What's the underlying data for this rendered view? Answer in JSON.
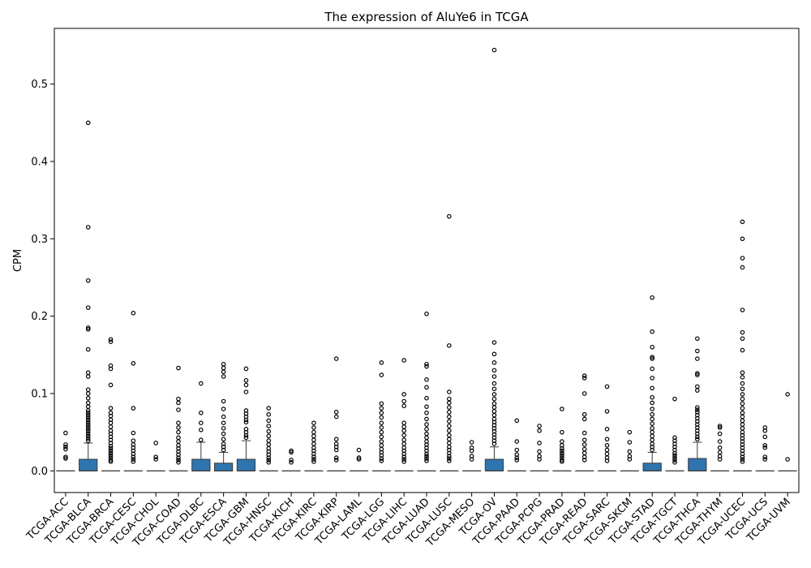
{
  "chart_data": {
    "type": "box",
    "title": "The expression of AluYe6 in TCGA",
    "xlabel": "",
    "ylabel": "CPM",
    "ylim": [
      -0.028,
      0.572
    ],
    "yticks": [
      0.0,
      0.1,
      0.2,
      0.3,
      0.4,
      0.5
    ],
    "ytick_labels": [
      "0.0",
      "0.1",
      "0.2",
      "0.3",
      "0.4",
      "0.5"
    ],
    "grid": false,
    "box_color": "#2e75b0",
    "categories": [
      "TCGA-ACC",
      "TCGA-BLCA",
      "TCGA-BRCA",
      "TCGA-CESC",
      "TCGA-CHOL",
      "TCGA-COAD",
      "TCGA-DLBC",
      "TCGA-ESCA",
      "TCGA-GBM",
      "TCGA-HNSC",
      "TCGA-KICH",
      "TCGA-KIRC",
      "TCGA-KIRP",
      "TCGA-LAML",
      "TCGA-LGG",
      "TCGA-LIHC",
      "TCGA-LUAD",
      "TCGA-LUSC",
      "TCGA-MESO",
      "TCGA-OV",
      "TCGA-PAAD",
      "TCGA-PCPG",
      "TCGA-PRAD",
      "TCGA-READ",
      "TCGA-SARC",
      "TCGA-SKCM",
      "TCGA-STAD",
      "TCGA-TGCT",
      "TCGA-THCA",
      "TCGA-THYM",
      "TCGA-UCEC",
      "TCGA-UCS",
      "TCGA-UVM"
    ],
    "boxes": [
      {
        "q1": 0,
        "median": 0,
        "q3": 0,
        "whisker_low": 0,
        "whisker_high": 0,
        "outliers": [
          0.049,
          0.034,
          0.031,
          0.028,
          0.018,
          0.016
        ]
      },
      {
        "q1": 0,
        "median": 0,
        "q3": 0.015,
        "whisker_low": 0,
        "whisker_high": 0.036,
        "outliers": [
          0.45,
          0.315,
          0.246,
          0.211,
          0.185,
          0.183,
          0.157,
          0.127,
          0.122,
          0.105,
          0.1,
          0.094,
          0.088,
          0.083,
          0.078,
          0.075,
          0.072,
          0.069,
          0.066,
          0.063,
          0.06,
          0.057,
          0.054,
          0.051,
          0.048,
          0.045,
          0.042,
          0.039
        ]
      },
      {
        "q1": 0,
        "median": 0,
        "q3": 0,
        "whisker_low": 0,
        "whisker_high": 0,
        "outliers": [
          0.17,
          0.167,
          0.136,
          0.132,
          0.111,
          0.081,
          0.075,
          0.071,
          0.066,
          0.062,
          0.057,
          0.052,
          0.048,
          0.044,
          0.04,
          0.036,
          0.032,
          0.029,
          0.026,
          0.023,
          0.02,
          0.017,
          0.014,
          0.012
        ]
      },
      {
        "q1": 0,
        "median": 0,
        "q3": 0,
        "whisker_low": 0,
        "whisker_high": 0,
        "outliers": [
          0.204,
          0.139,
          0.081,
          0.049,
          0.039,
          0.034,
          0.03,
          0.026,
          0.022,
          0.018,
          0.015,
          0.012
        ]
      },
      {
        "q1": 0,
        "median": 0,
        "q3": 0,
        "whisker_low": 0,
        "whisker_high": 0,
        "outliers": [
          0.036,
          0.018,
          0.015
        ]
      },
      {
        "q1": 0,
        "median": 0,
        "q3": 0,
        "whisker_low": 0,
        "whisker_high": 0,
        "outliers": [
          0.133,
          0.093,
          0.088,
          0.079,
          0.062,
          0.056,
          0.05,
          0.043,
          0.038,
          0.033,
          0.029,
          0.025,
          0.021,
          0.017,
          0.014,
          0.011
        ]
      },
      {
        "q1": 0,
        "median": 0,
        "q3": 0.015,
        "whisker_low": 0,
        "whisker_high": 0.037,
        "outliers": [
          0.113,
          0.075,
          0.062,
          0.053,
          0.04
        ]
      },
      {
        "q1": 0,
        "median": 0,
        "q3": 0.01,
        "whisker_low": 0,
        "whisker_high": 0.024,
        "outliers": [
          0.138,
          0.133,
          0.128,
          0.122,
          0.09,
          0.08,
          0.07,
          0.062,
          0.055,
          0.048,
          0.041,
          0.035,
          0.031,
          0.027
        ]
      },
      {
        "q1": 0,
        "median": 0,
        "q3": 0.015,
        "whisker_low": 0,
        "whisker_high": 0.039,
        "outliers": [
          0.132,
          0.117,
          0.111,
          0.102,
          0.078,
          0.074,
          0.07,
          0.066,
          0.063,
          0.054,
          0.05,
          0.046,
          0.043
        ]
      },
      {
        "q1": 0,
        "median": 0,
        "q3": 0,
        "whisker_low": 0,
        "whisker_high": 0,
        "outliers": [
          0.081,
          0.073,
          0.065,
          0.058,
          0.051,
          0.045,
          0.039,
          0.034,
          0.029,
          0.025,
          0.021,
          0.017,
          0.014,
          0.011
        ]
      },
      {
        "q1": 0,
        "median": 0,
        "q3": 0,
        "whisker_low": 0,
        "whisker_high": 0,
        "outliers": [
          0.026,
          0.024,
          0.014,
          0.011
        ]
      },
      {
        "q1": 0,
        "median": 0,
        "q3": 0,
        "whisker_low": 0,
        "whisker_high": 0,
        "outliers": [
          0.062,
          0.056,
          0.05,
          0.045,
          0.04,
          0.035,
          0.03,
          0.026,
          0.022,
          0.018,
          0.015,
          0.012
        ]
      },
      {
        "q1": 0,
        "median": 0,
        "q3": 0,
        "whisker_low": 0,
        "whisker_high": 0,
        "outliers": [
          0.145,
          0.076,
          0.07,
          0.041,
          0.035,
          0.031,
          0.027,
          0.017,
          0.014
        ]
      },
      {
        "q1": 0,
        "median": 0,
        "q3": 0,
        "whisker_low": 0,
        "whisker_high": 0,
        "outliers": [
          0.027,
          0.017,
          0.015
        ]
      },
      {
        "q1": 0,
        "median": 0,
        "q3": 0,
        "whisker_low": 0,
        "whisker_high": 0,
        "outliers": [
          0.14,
          0.124,
          0.087,
          0.081,
          0.075,
          0.069,
          0.062,
          0.056,
          0.05,
          0.044,
          0.038,
          0.033,
          0.028,
          0.024,
          0.02,
          0.016,
          0.013
        ]
      },
      {
        "q1": 0,
        "median": 0,
        "q3": 0,
        "whisker_low": 0,
        "whisker_high": 0,
        "outliers": [
          0.143,
          0.099,
          0.09,
          0.084,
          0.062,
          0.057,
          0.052,
          0.046,
          0.04,
          0.035,
          0.03,
          0.026,
          0.022,
          0.018,
          0.015,
          0.012
        ]
      },
      {
        "q1": 0,
        "median": 0,
        "q3": 0,
        "whisker_low": 0,
        "whisker_high": 0,
        "outliers": [
          0.203,
          0.138,
          0.135,
          0.118,
          0.108,
          0.094,
          0.083,
          0.075,
          0.067,
          0.06,
          0.054,
          0.048,
          0.043,
          0.038,
          0.034,
          0.03,
          0.026,
          0.022,
          0.019,
          0.016,
          0.013
        ]
      },
      {
        "q1": 0,
        "median": 0,
        "q3": 0,
        "whisker_low": 0,
        "whisker_high": 0,
        "outliers": [
          0.329,
          0.162,
          0.102,
          0.093,
          0.088,
          0.082,
          0.076,
          0.07,
          0.064,
          0.058,
          0.052,
          0.046,
          0.041,
          0.036,
          0.031,
          0.027,
          0.023,
          0.019,
          0.016,
          0.013
        ]
      },
      {
        "q1": 0,
        "median": 0,
        "q3": 0,
        "whisker_low": 0,
        "whisker_high": 0,
        "outliers": [
          0.037,
          0.03,
          0.026,
          0.019,
          0.015
        ]
      },
      {
        "q1": 0,
        "median": 0,
        "q3": 0.015,
        "whisker_low": 0,
        "whisker_high": 0.031,
        "outliers": [
          0.544,
          0.166,
          0.151,
          0.14,
          0.13,
          0.122,
          0.113,
          0.106,
          0.099,
          0.093,
          0.087,
          0.082,
          0.077,
          0.072,
          0.067,
          0.063,
          0.059,
          0.055,
          0.051,
          0.047,
          0.043,
          0.039,
          0.035
        ]
      },
      {
        "q1": 0,
        "median": 0,
        "q3": 0,
        "whisker_low": 0,
        "whisker_high": 0,
        "outliers": [
          0.065,
          0.038,
          0.027,
          0.021,
          0.017,
          0.014
        ]
      },
      {
        "q1": 0,
        "median": 0,
        "q3": 0,
        "whisker_low": 0,
        "whisker_high": 0,
        "outliers": [
          0.058,
          0.052,
          0.036,
          0.025,
          0.019,
          0.015
        ]
      },
      {
        "q1": 0,
        "median": 0,
        "q3": 0,
        "whisker_low": 0,
        "whisker_high": 0,
        "outliers": [
          0.08,
          0.05,
          0.038,
          0.033,
          0.029,
          0.026,
          0.023,
          0.02,
          0.017,
          0.014,
          0.012
        ]
      },
      {
        "q1": 0,
        "median": 0,
        "q3": 0,
        "whisker_low": 0,
        "whisker_high": 0,
        "outliers": [
          0.123,
          0.12,
          0.1,
          0.073,
          0.067,
          0.049,
          0.04,
          0.034,
          0.028,
          0.023,
          0.018,
          0.014
        ]
      },
      {
        "q1": 0,
        "median": 0,
        "q3": 0,
        "whisker_low": 0,
        "whisker_high": 0,
        "outliers": [
          0.109,
          0.077,
          0.054,
          0.041,
          0.033,
          0.027,
          0.022,
          0.017,
          0.013
        ]
      },
      {
        "q1": 0,
        "median": 0,
        "q3": 0,
        "whisker_low": 0,
        "whisker_high": 0,
        "outliers": [
          0.05,
          0.037,
          0.025,
          0.019,
          0.015
        ]
      },
      {
        "q1": 0,
        "median": 0,
        "q3": 0.01,
        "whisker_low": 0,
        "whisker_high": 0.024,
        "outliers": [
          0.224,
          0.18,
          0.16,
          0.147,
          0.145,
          0.132,
          0.12,
          0.107,
          0.095,
          0.088,
          0.08,
          0.073,
          0.067,
          0.061,
          0.055,
          0.05,
          0.045,
          0.04,
          0.035,
          0.031,
          0.027
        ]
      },
      {
        "q1": 0,
        "median": 0,
        "q3": 0,
        "whisker_low": 0,
        "whisker_high": 0,
        "outliers": [
          0.093,
          0.043,
          0.039,
          0.035,
          0.031,
          0.027,
          0.023,
          0.02,
          0.017,
          0.014,
          0.011
        ]
      },
      {
        "q1": 0,
        "median": 0,
        "q3": 0.016,
        "whisker_low": 0,
        "whisker_high": 0.037,
        "outliers": [
          0.171,
          0.155,
          0.145,
          0.126,
          0.124,
          0.109,
          0.104,
          0.082,
          0.079,
          0.076,
          0.072,
          0.068,
          0.064,
          0.06,
          0.056,
          0.052,
          0.048,
          0.044,
          0.041
        ]
      },
      {
        "q1": 0,
        "median": 0,
        "q3": 0,
        "whisker_low": 0,
        "whisker_high": 0,
        "outliers": [
          0.058,
          0.056,
          0.048,
          0.038,
          0.03,
          0.024,
          0.019,
          0.015
        ]
      },
      {
        "q1": 0,
        "median": 0,
        "q3": 0,
        "whisker_low": 0,
        "whisker_high": 0,
        "outliers": [
          0.322,
          0.3,
          0.275,
          0.263,
          0.208,
          0.179,
          0.171,
          0.156,
          0.127,
          0.121,
          0.113,
          0.106,
          0.099,
          0.093,
          0.087,
          0.081,
          0.075,
          0.07,
          0.065,
          0.06,
          0.055,
          0.05,
          0.046,
          0.042,
          0.038,
          0.034,
          0.03,
          0.026,
          0.022,
          0.018,
          0.015,
          0.012
        ]
      },
      {
        "q1": 0,
        "median": 0,
        "q3": 0,
        "whisker_low": 0,
        "whisker_high": 0,
        "outliers": [
          0.056,
          0.052,
          0.044,
          0.033,
          0.03,
          0.018,
          0.015
        ]
      },
      {
        "q1": 0,
        "median": 0,
        "q3": 0,
        "whisker_low": 0,
        "whisker_high": 0,
        "outliers": [
          0.099,
          0.015
        ]
      }
    ]
  }
}
